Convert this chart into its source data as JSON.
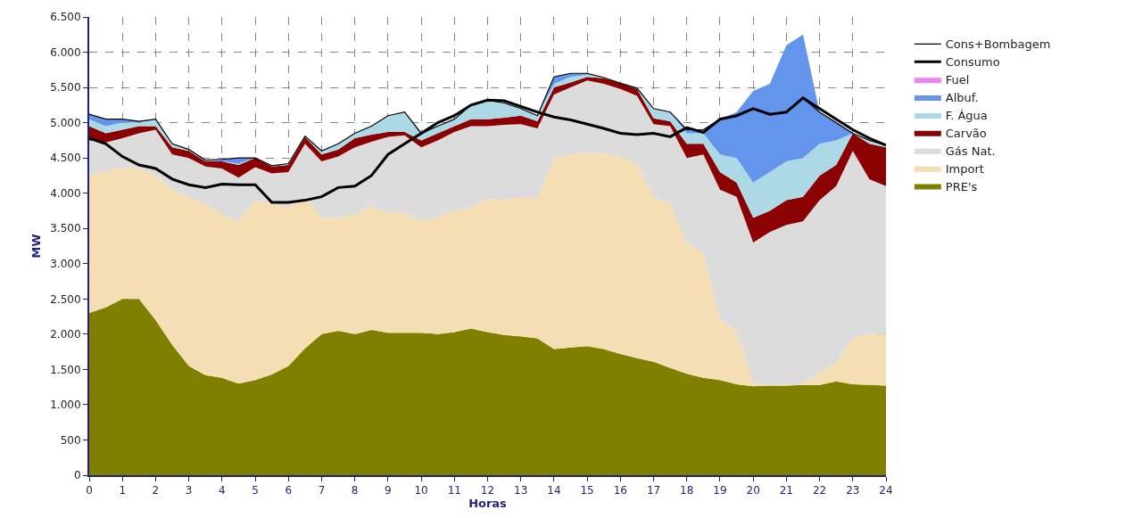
{
  "chart_data": {
    "type": "area",
    "stacked": true,
    "xlabel": "Horas",
    "ylabel": "MW",
    "x": [
      0,
      0.5,
      1,
      1.5,
      2,
      2.5,
      3,
      3.5,
      4,
      4.5,
      5,
      5.5,
      6,
      6.5,
      7,
      7.5,
      8,
      8.5,
      9,
      9.5,
      10,
      10.5,
      11,
      11.5,
      12,
      12.5,
      13,
      13.5,
      14,
      14.5,
      15,
      15.5,
      16,
      16.5,
      17,
      17.5,
      18,
      18.5,
      19,
      19.5,
      20,
      20.5,
      21,
      21.5,
      22,
      22.5,
      23,
      23.5,
      24
    ],
    "xlim": [
      0,
      24
    ],
    "xticks": [
      0,
      1,
      2,
      3,
      4,
      5,
      6,
      7,
      8,
      9,
      10,
      11,
      12,
      13,
      14,
      15,
      16,
      17,
      18,
      19,
      20,
      21,
      22,
      23,
      24
    ],
    "ylim": [
      0,
      6500
    ],
    "yticks": [
      0,
      500,
      {
        "value": 1000,
        "label": "1.000"
      },
      {
        "value": 1500,
        "label": "1.500"
      },
      {
        "value": 2000,
        "label": "2.000"
      },
      {
        "value": 2500,
        "label": "2.500"
      },
      {
        "value": 3000,
        "label": "3.000"
      },
      {
        "value": 3500,
        "label": "3.500"
      },
      {
        "value": 4000,
        "label": "4.000"
      },
      {
        "value": 4500,
        "label": "4.500"
      },
      {
        "value": 5000,
        "label": "5.000"
      },
      {
        "value": 5500,
        "label": "5.500"
      },
      {
        "value": 6000,
        "label": "6.000"
      },
      {
        "value": 6500,
        "label": "6.500"
      }
    ],
    "grid": true,
    "legend": "top right",
    "series": [
      {
        "name": "PRE's",
        "color": "#808000",
        "values": [
          2300,
          2380,
          2500,
          2500,
          2200,
          1850,
          1550,
          1420,
          1380,
          1300,
          1350,
          1430,
          1550,
          1800,
          2000,
          2050,
          2000,
          2060,
          2020,
          2020,
          2020,
          2000,
          2030,
          2080,
          2030,
          1990,
          1970,
          1940,
          1790,
          1810,
          1830,
          1790,
          1720,
          1660,
          1610,
          1520,
          1440,
          1380,
          1350,
          1290,
          1260,
          1270,
          1270,
          1280,
          1280,
          1330,
          1290,
          1280,
          1270
        ]
      },
      {
        "name": "Import",
        "color": "#f5deb3",
        "values": [
          1950,
          1940,
          1870,
          1850,
          2050,
          2200,
          2400,
          2430,
          2320,
          2300,
          2550,
          2420,
          2250,
          2150,
          1650,
          1600,
          1700,
          1760,
          1700,
          1700,
          1580,
          1650,
          1720,
          1720,
          1890,
          1910,
          1980,
          1990,
          2710,
          2740,
          2750,
          2770,
          2800,
          2740,
          2340,
          2330,
          1860,
          1770,
          850,
          760,
          40,
          10,
          10,
          20,
          170,
          270,
          660,
          720,
          730
        ]
      },
      {
        "name": "Gás Nat.",
        "color": "#dcdcdc",
        "values": [
          500,
          400,
          410,
          500,
          650,
          500,
          550,
          530,
          650,
          620,
          470,
          430,
          500,
          750,
          800,
          870,
          950,
          910,
          1080,
          1100,
          1050,
          1100,
          1120,
          1150,
          1030,
          1070,
          1030,
          990,
          900,
          950,
          1020,
          990,
          960,
          980,
          1030,
          1100,
          1200,
          1400,
          1850,
          1900,
          2000,
          2170,
          2270,
          2300,
          2450,
          2500,
          2650,
          2200,
          2100
        ]
      },
      {
        "name": "Carvão",
        "color": "#8b0000",
        "values": [
          200,
          130,
          120,
          100,
          50,
          100,
          100,
          70,
          100,
          180,
          130,
          100,
          100,
          100,
          100,
          100,
          130,
          100,
          70,
          50,
          100,
          100,
          80,
          100,
          100,
          100,
          120,
          100,
          100,
          70,
          50,
          80,
          80,
          100,
          80,
          70,
          200,
          150,
          250,
          200,
          350,
          300,
          350,
          350,
          350,
          300,
          250,
          500,
          550
        ]
      },
      {
        "name": "F. Água",
        "color": "#add8e6",
        "values": [
          100,
          100,
          100,
          50,
          100,
          50,
          20,
          20,
          0,
          20,
          0,
          10,
          20,
          10,
          50,
          80,
          70,
          120,
          230,
          280,
          70,
          100,
          100,
          200,
          270,
          210,
          100,
          80,
          50,
          80,
          30,
          10,
          0,
          10,
          140,
          130,
          150,
          150,
          250,
          350,
          500,
          550,
          550,
          550,
          450,
          350,
          0,
          50,
          30
        ]
      },
      {
        "name": "Albuf.",
        "color": "#6495ed",
        "values": [
          70,
          100,
          50,
          20,
          0,
          0,
          0,
          0,
          30,
          80,
          0,
          0,
          0,
          0,
          0,
          0,
          0,
          0,
          0,
          0,
          30,
          0,
          0,
          0,
          0,
          0,
          0,
          0,
          100,
          50,
          20,
          0,
          0,
          0,
          0,
          0,
          50,
          50,
          500,
          650,
          1300,
          1250,
          1650,
          1750,
          450,
          250,
          0,
          0,
          0
        ]
      },
      {
        "name": "Fuel",
        "color": "#ee82ee",
        "values": [
          null,
          null,
          null,
          null,
          null,
          null,
          null,
          null,
          null,
          null,
          null,
          null,
          null,
          null,
          null,
          null,
          null,
          null,
          null,
          null,
          null,
          null,
          null,
          null,
          null,
          null,
          null,
          null,
          null,
          null,
          null,
          null,
          null,
          null,
          null,
          null,
          null,
          null,
          null,
          null,
          null,
          null,
          null,
          null,
          null,
          null,
          null,
          null,
          null
        ]
      },
      {
        "name": "Consumo",
        "type": "line",
        "color": "#000000",
        "values": [
          4780,
          4700,
          4520,
          4400,
          4350,
          4200,
          4120,
          4080,
          4130,
          4120,
          4120,
          3870,
          3870,
          3900,
          3950,
          4080,
          4100,
          4250,
          4550,
          4700,
          4850,
          5000,
          5100,
          5250,
          5320,
          5310,
          5230,
          5150,
          5080,
          5040,
          4980,
          4920,
          4850,
          4830,
          4850,
          4800,
          4930,
          4860,
          5050,
          5100,
          5200,
          5120,
          5150,
          5350,
          5200,
          5050,
          4900,
          4780,
          4680
        ]
      },
      {
        "name": "Cons+Bombagem",
        "type": "line",
        "color": "#000000",
        "values": [
          5120,
          5050,
          5050,
          5020,
          5050,
          4700,
          4620,
          4470,
          4480,
          4500,
          4500,
          4390,
          4420,
          4810,
          4600,
          4700,
          4850,
          4950,
          5100,
          5150,
          4850,
          4950,
          5050,
          5250,
          5320,
          5280,
          5200,
          5100,
          5650,
          5700,
          5700,
          5640,
          5560,
          5490,
          5200,
          5150,
          4900,
          4900,
          5050,
          5100,
          5200,
          5120,
          5150,
          5350,
          5150,
          5000,
          4850,
          4750,
          4680
        ]
      }
    ]
  }
}
